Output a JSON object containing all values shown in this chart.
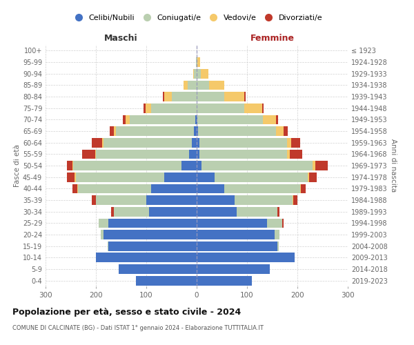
{
  "age_groups": [
    "0-4",
    "5-9",
    "10-14",
    "15-19",
    "20-24",
    "25-29",
    "30-34",
    "35-39",
    "40-44",
    "45-49",
    "50-54",
    "55-59",
    "60-64",
    "65-69",
    "70-74",
    "75-79",
    "80-84",
    "85-89",
    "90-94",
    "95-99",
    "100+"
  ],
  "birth_years": [
    "2019-2023",
    "2014-2018",
    "2009-2013",
    "2004-2008",
    "1999-2003",
    "1994-1998",
    "1989-1993",
    "1984-1988",
    "1979-1983",
    "1974-1978",
    "1969-1973",
    "1964-1968",
    "1959-1963",
    "1954-1958",
    "1949-1953",
    "1944-1948",
    "1939-1943",
    "1934-1938",
    "1929-1933",
    "1924-1928",
    "≤ 1923"
  ],
  "colors": {
    "celibe": "#4472C4",
    "coniugato": "#BACFB0",
    "vedovo": "#F5C96A",
    "divorziato": "#C0392B"
  },
  "males": {
    "celibe": [
      120,
      155,
      200,
      175,
      185,
      175,
      95,
      100,
      90,
      65,
      30,
      15,
      10,
      5,
      3,
      0,
      0,
      0,
      0,
      0,
      0
    ],
    "coniugato": [
      0,
      0,
      0,
      2,
      5,
      20,
      70,
      100,
      145,
      175,
      215,
      185,
      175,
      155,
      130,
      90,
      50,
      18,
      5,
      2,
      0
    ],
    "vedovo": [
      0,
      0,
      0,
      0,
      0,
      0,
      0,
      0,
      2,
      2,
      2,
      2,
      3,
      5,
      8,
      12,
      15,
      8,
      2,
      0,
      0
    ],
    "divorziato": [
      0,
      0,
      0,
      0,
      0,
      0,
      5,
      8,
      10,
      15,
      10,
      25,
      20,
      8,
      5,
      3,
      2,
      0,
      0,
      0,
      0
    ]
  },
  "females": {
    "nubile": [
      110,
      145,
      195,
      160,
      155,
      140,
      80,
      75,
      55,
      35,
      10,
      5,
      5,
      3,
      2,
      0,
      0,
      0,
      0,
      0,
      0
    ],
    "coniugata": [
      0,
      0,
      0,
      3,
      10,
      30,
      80,
      115,
      150,
      185,
      220,
      175,
      175,
      155,
      130,
      95,
      55,
      25,
      8,
      2,
      0
    ],
    "vedova": [
      0,
      0,
      0,
      0,
      0,
      0,
      0,
      2,
      2,
      3,
      5,
      5,
      8,
      15,
      25,
      35,
      40,
      30,
      15,
      5,
      0
    ],
    "divorziata": [
      0,
      0,
      0,
      0,
      0,
      3,
      5,
      8,
      10,
      15,
      25,
      25,
      18,
      8,
      5,
      3,
      2,
      0,
      0,
      0,
      0
    ]
  },
  "xlim": 300,
  "title": "Popolazione per età, sesso e stato civile - 2024",
  "subtitle": "COMUNE DI CALCINATE (BG) - Dati ISTAT 1° gennaio 2024 - Elaborazione TUTTITALIA.IT",
  "header_maschi": "Maschi",
  "header_femmine": "Femmine",
  "ylabel_left": "Fasce di età",
  "ylabel_right": "Anni di nascita",
  "legend_labels": [
    "Celibi/Nubili",
    "Coniugati/e",
    "Vedovi/e",
    "Divorziati/e"
  ],
  "bg_color": "#ffffff",
  "grid_color": "#cccccc"
}
